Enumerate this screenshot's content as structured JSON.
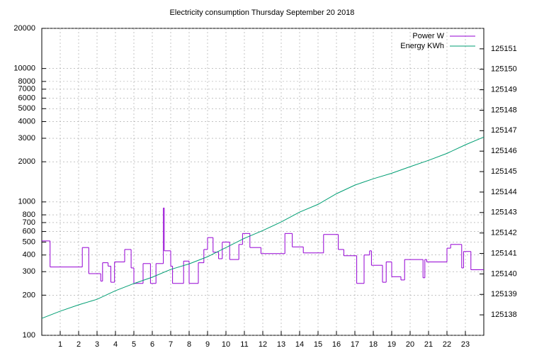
{
  "chart_data": {
    "type": "line",
    "title": "Electricity consumption Thursday September 20 2018",
    "xlim": [
      0,
      24
    ],
    "xticks": [
      1,
      2,
      3,
      4,
      5,
      6,
      7,
      8,
      9,
      10,
      11,
      12,
      13,
      14,
      15,
      16,
      17,
      18,
      19,
      20,
      21,
      22,
      23
    ],
    "ylim": [
      100,
      20000
    ],
    "ylog": true,
    "yticks": [
      100,
      200,
      300,
      400,
      500,
      600,
      700,
      800,
      1000,
      2000,
      3000,
      4000,
      5000,
      6000,
      7000,
      8000,
      10000,
      20000
    ],
    "y2lim": [
      125137,
      125152
    ],
    "y2ticks": [
      125138,
      125139,
      125140,
      125141,
      125142,
      125143,
      125144,
      125145,
      125146,
      125147,
      125148,
      125149,
      125150,
      125151
    ],
    "grid": true,
    "legend": "top-right",
    "series": [
      {
        "name": "Power W",
        "color": "#9400d3",
        "style": "steps",
        "x": [
          0,
          0.45,
          2.2,
          2.55,
          3.2,
          3.3,
          3.6,
          3.75,
          3.95,
          4.5,
          4.85,
          5.0,
          5.5,
          5.9,
          6.2,
          6.6,
          6.65,
          7.0,
          7.1,
          7.7,
          8.0,
          8.5,
          8.8,
          9.0,
          9.3,
          9.6,
          9.8,
          10.2,
          10.7,
          10.9,
          11.3,
          11.9,
          13.2,
          13.6,
          14.2,
          15.3,
          16.1,
          16.4,
          17.1,
          17.5,
          17.8,
          17.9,
          18.5,
          18.7,
          19.0,
          19.5,
          19.7,
          20.7,
          20.8,
          20.9,
          22.0,
          22.2,
          22.8,
          22.9,
          23.3
        ],
        "values": [
          510,
          325,
          455,
          290,
          255,
          350,
          330,
          250,
          355,
          440,
          320,
          245,
          345,
          245,
          345,
          900,
          430,
          330,
          245,
          360,
          245,
          350,
          440,
          540,
          420,
          375,
          500,
          370,
          480,
          580,
          455,
          410,
          580,
          460,
          415,
          570,
          440,
          395,
          245,
          400,
          430,
          335,
          250,
          355,
          275,
          260,
          370,
          270,
          370,
          355,
          450,
          480,
          320,
          425,
          310
        ]
      },
      {
        "name": "Energy KWh",
        "color": "#009e73",
        "axis": "y2",
        "style": "line",
        "x": [
          0,
          1,
          2,
          3,
          4,
          5,
          6,
          7,
          8,
          9,
          10,
          11,
          12,
          13,
          14,
          15,
          16,
          17,
          18,
          19,
          20,
          21,
          22,
          23,
          24
        ],
        "values": [
          125137.83,
          125138.18,
          125138.49,
          125138.76,
          125139.18,
          125139.53,
          125139.84,
          125140.22,
          125140.49,
          125140.84,
          125141.29,
          125141.74,
          125142.12,
          125142.54,
          125143.02,
          125143.4,
          125143.92,
          125144.34,
          125144.65,
          125144.92,
          125145.24,
          125145.55,
          125145.89,
          125146.31,
          125146.69
        ]
      }
    ]
  }
}
